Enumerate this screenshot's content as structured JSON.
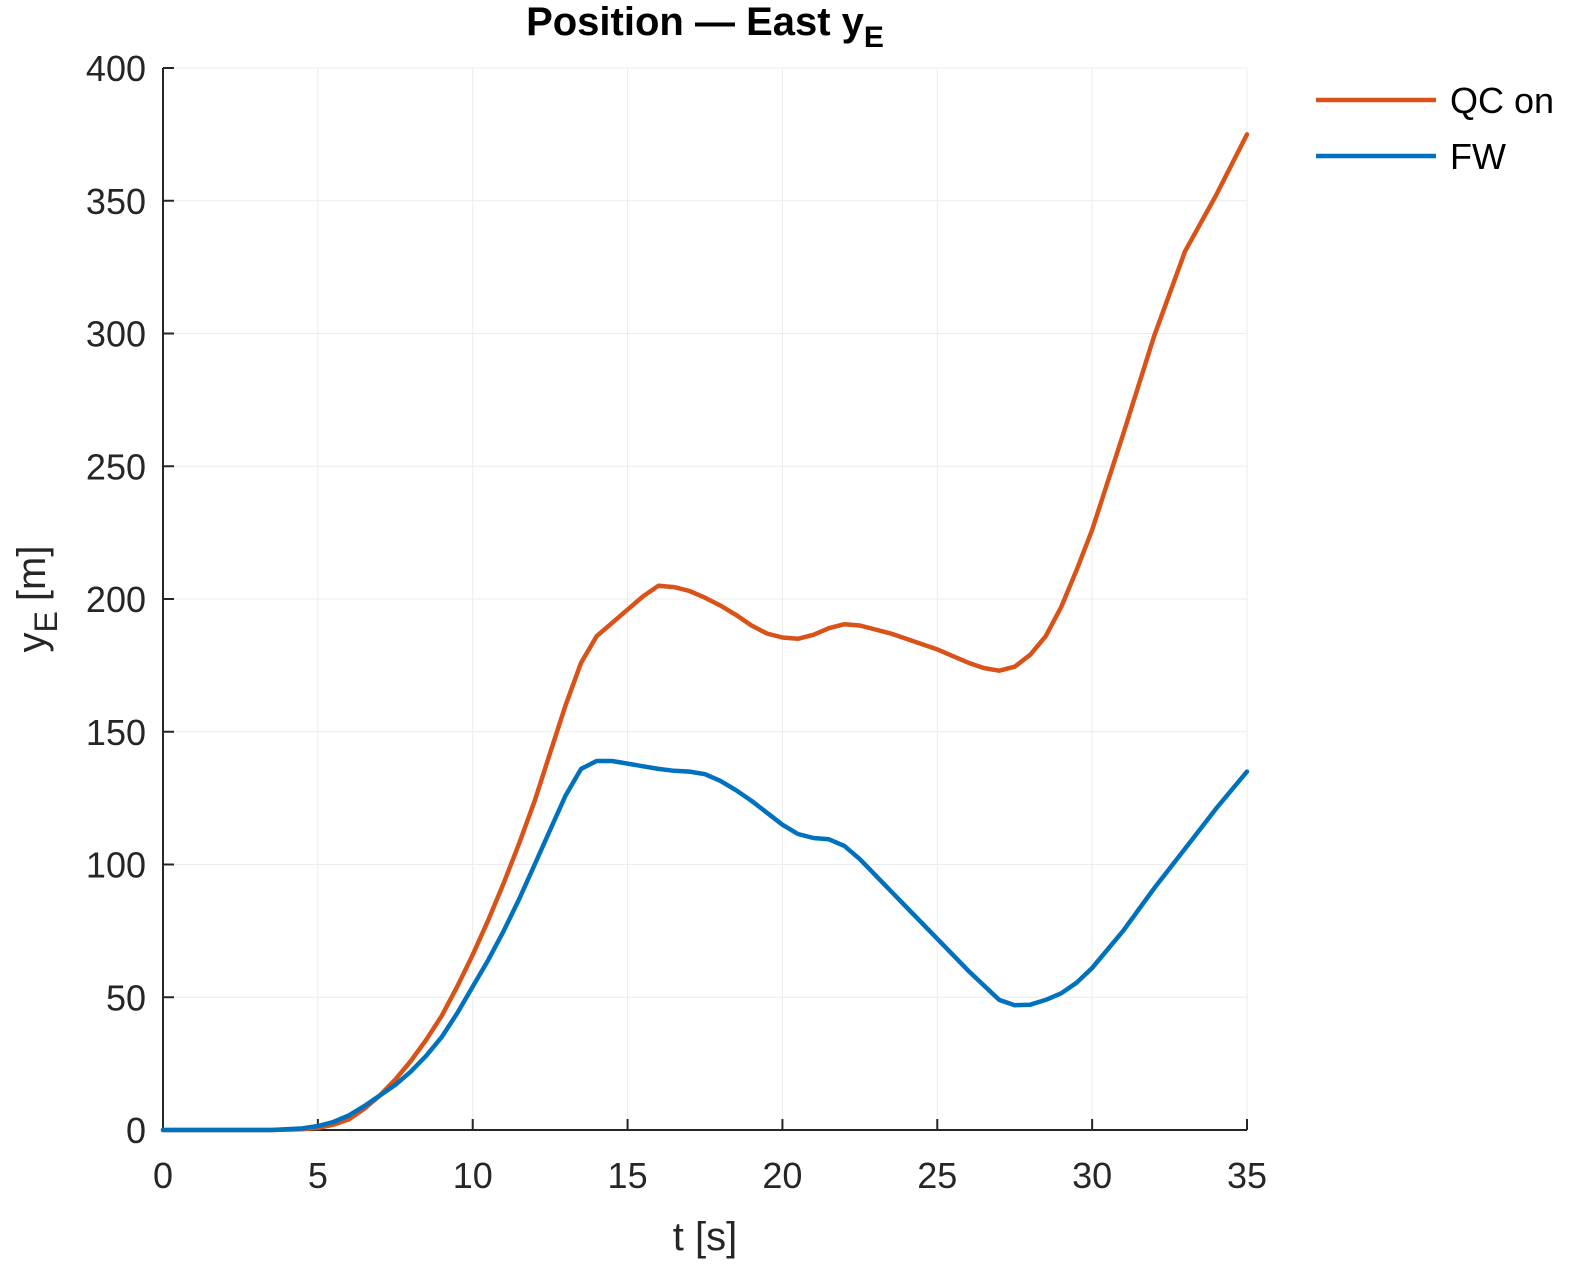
{
  "chart_data": {
    "type": "line",
    "title": "Position — East y",
    "title_sub": "E",
    "xlabel": "t [s]",
    "ylabel": "y",
    "ylabel_sub": "E",
    "ylabel_unit": "[m]",
    "xlim": [
      0,
      35
    ],
    "ylim": [
      0,
      400
    ],
    "xticks": [
      0,
      5,
      10,
      15,
      20,
      25,
      30,
      35
    ],
    "yticks": [
      0,
      50,
      100,
      150,
      200,
      250,
      300,
      350,
      400
    ],
    "grid": true,
    "legend_position": "top-right",
    "series": [
      {
        "name": "QC on",
        "color": "#D95319",
        "x": [
          0,
          2,
          3.5,
          4.5,
          5,
          5.5,
          6,
          6.5,
          7,
          7.5,
          8,
          8.5,
          9,
          9.5,
          10,
          10.5,
          11,
          11.5,
          12,
          12.5,
          13,
          13.5,
          14,
          14.5,
          15,
          15.5,
          16,
          16.5,
          17,
          17.5,
          18,
          18.5,
          19,
          19.5,
          20,
          20.5,
          21,
          21.5,
          22,
          22.5,
          23,
          23.5,
          24,
          24.5,
          25,
          25.5,
          26,
          26.5,
          27,
          27.5,
          28,
          28.5,
          29,
          29.5,
          30,
          31,
          32,
          33,
          34,
          35
        ],
        "y": [
          0,
          0,
          0,
          0.3,
          0.8,
          2,
          4,
          8,
          13,
          19,
          26,
          34,
          43,
          54,
          66,
          79,
          93,
          108,
          124,
          142,
          160,
          176,
          186,
          191,
          196,
          201,
          205,
          204.5,
          203,
          200.5,
          197.5,
          194,
          190,
          187,
          185.5,
          185,
          186.5,
          189,
          190.5,
          190,
          188.5,
          187,
          185,
          183,
          181,
          178.5,
          176,
          174,
          173,
          174.5,
          179,
          186,
          197,
          211,
          226,
          262,
          299,
          331,
          352,
          375
        ]
      },
      {
        "name": "FW",
        "color": "#0072BD",
        "x": [
          0,
          2,
          3.5,
          4.5,
          5,
          5.5,
          6,
          6.5,
          7,
          7.5,
          8,
          8.5,
          9,
          9.5,
          10,
          10.5,
          11,
          11.5,
          12,
          12.5,
          13,
          13.5,
          14,
          14.5,
          15,
          15.5,
          16,
          16.5,
          17,
          17.5,
          18,
          18.5,
          19,
          19.5,
          20,
          20.5,
          21,
          21.5,
          22,
          22.5,
          23,
          24,
          25,
          26,
          27,
          27.5,
          28,
          28.5,
          29,
          29.5,
          30,
          31,
          32,
          33,
          34,
          35
        ],
        "y": [
          0,
          0,
          0,
          0.6,
          1.5,
          3,
          5.5,
          9,
          13,
          17,
          22,
          28,
          35,
          44,
          54,
          64,
          75,
          87,
          100,
          113,
          126,
          136,
          139,
          139,
          138,
          137,
          136,
          135.3,
          135,
          134,
          131.5,
          128,
          124,
          119.5,
          115,
          111.5,
          110,
          109.5,
          107,
          102,
          96,
          84,
          72,
          60,
          49,
          47,
          47.2,
          49,
          51.5,
          55.5,
          61,
          75,
          91,
          106,
          121,
          135
        ]
      }
    ]
  }
}
